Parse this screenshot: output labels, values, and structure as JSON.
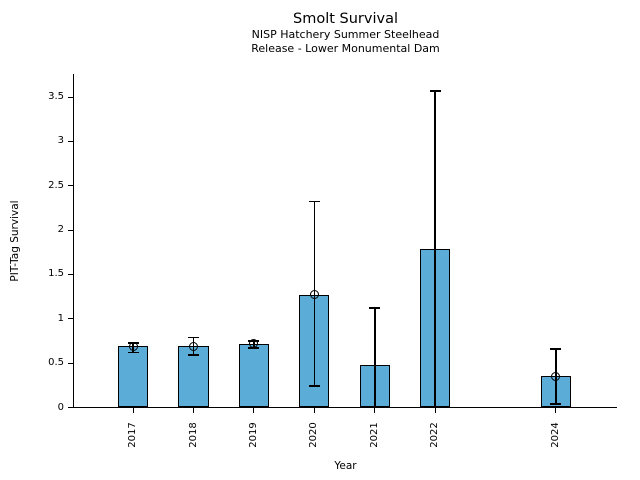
{
  "chart_data": {
    "type": "bar",
    "title": "Smolt Survival",
    "subtitle_line1": "NISP Hatchery Summer Steelhead",
    "subtitle_line2": "Release - Lower Monumental Dam",
    "xlabel": "Year",
    "ylabel": "PIT-Tag Survival",
    "ylim": [
      0,
      3.76
    ],
    "xlim": [
      2016.02,
      2025.01
    ],
    "yticks": [
      0,
      0.5,
      1,
      1.5,
      2,
      2.5,
      3,
      3.5
    ],
    "ytick_labels": [
      "0",
      "0.5",
      "1",
      "1.5",
      "2",
      "2.5",
      "3",
      "3.5"
    ],
    "grid": false,
    "legend": "none",
    "bar_color": "#5BACD6",
    "bar_edge_color": "#000000",
    "bar_width_years": 0.5,
    "series": [
      {
        "year": "2017",
        "x": 2017,
        "value": 0.69,
        "ci_low": 0.62,
        "ci_high": 0.73,
        "marker": true,
        "lower_cap": true
      },
      {
        "year": "2018",
        "x": 2018,
        "value": 0.69,
        "ci_low": 0.59,
        "ci_high": 0.79,
        "marker": true,
        "lower_cap": true
      },
      {
        "year": "2019",
        "x": 2019,
        "value": 0.72,
        "ci_low": 0.67,
        "ci_high": 0.75,
        "marker": true,
        "lower_cap": true
      },
      {
        "year": "2020",
        "x": 2020,
        "value": 1.27,
        "ci_low": 0.24,
        "ci_high": 2.32,
        "marker": true,
        "lower_cap": true
      },
      {
        "year": "2021",
        "x": 2021,
        "value": 0.48,
        "ci_low": 0.0,
        "ci_high": 1.12,
        "marker": false,
        "lower_cap": false
      },
      {
        "year": "2022",
        "x": 2022,
        "value": 1.79,
        "ci_low": 0.0,
        "ci_high": 3.57,
        "marker": false,
        "lower_cap": false
      },
      {
        "year": "2024",
        "x": 2024,
        "value": 0.35,
        "ci_low": 0.04,
        "ci_high": 0.66,
        "marker": true,
        "lower_cap": true
      }
    ]
  }
}
